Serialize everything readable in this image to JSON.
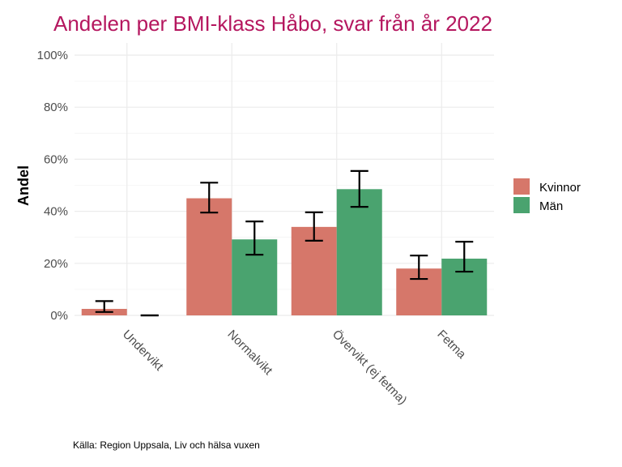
{
  "chart_data": {
    "type": "bar",
    "title": "Andelen per BMI-klass Håbo, svar från år 2022",
    "xlabel": "",
    "ylabel": "Andel",
    "ylim": [
      0,
      100
    ],
    "yticks": [
      0,
      20,
      40,
      60,
      80,
      100
    ],
    "ytick_labels": [
      "0%",
      "20%",
      "40%",
      "60%",
      "80%",
      "100%"
    ],
    "categories": [
      "Undervikt",
      "Normalvikt",
      "Övervikt (ej fetma)",
      "Fetma"
    ],
    "series": [
      {
        "name": "Kvinnor",
        "color": "#d6776a",
        "values": [
          2.5,
          45,
          34,
          18
        ],
        "err_low": [
          1.3,
          39.5,
          28.7,
          14
        ],
        "err_high": [
          5.5,
          51,
          39.6,
          23
        ]
      },
      {
        "name": "Män",
        "color": "#4aa36f",
        "values": [
          0,
          29.2,
          48.5,
          21.8
        ],
        "err_low": [
          0,
          23.3,
          41.7,
          16.8
        ],
        "err_high": [
          0,
          36.1,
          55.5,
          28.3
        ]
      }
    ],
    "legend_position": "right",
    "grid": true,
    "caption": "Källa: Region Uppsala, Liv och hälsa vuxen"
  }
}
